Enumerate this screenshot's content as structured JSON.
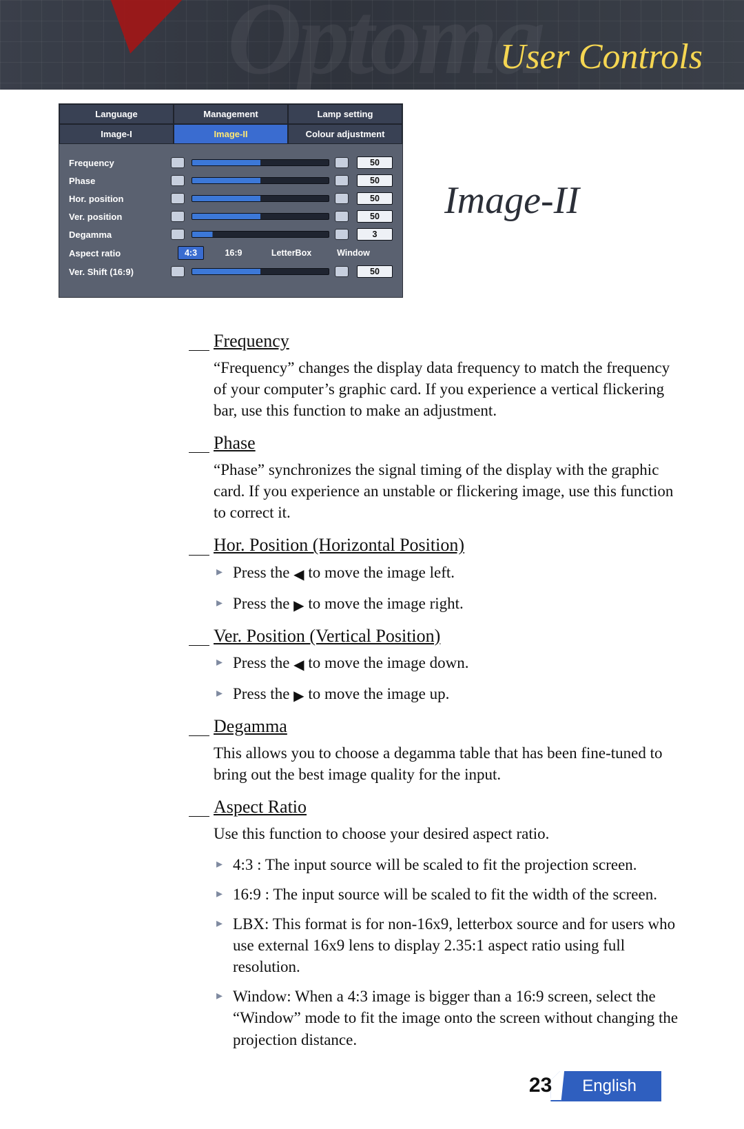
{
  "header": {
    "watermark": "Optoma",
    "title": "User Controls"
  },
  "section_title": "Image-II",
  "osd": {
    "tabs_top": [
      "Language",
      "Management",
      "Lamp setting"
    ],
    "tabs_bottom": [
      "Image-I",
      "Image-II",
      "Colour adjustment"
    ],
    "active_tab": "Image-II",
    "rows": [
      {
        "label": "Frequency",
        "value": "50"
      },
      {
        "label": "Phase",
        "value": "50"
      },
      {
        "label": "Hor. position",
        "value": "50"
      },
      {
        "label": "Ver. position",
        "value": "50"
      },
      {
        "label": "Degamma",
        "value": "3"
      }
    ],
    "aspect": {
      "label": "Aspect ratio",
      "options": [
        "4:3",
        "16:9",
        "LetterBox",
        "Window"
      ],
      "selected": "4:3"
    },
    "vshift": {
      "label": "Ver. Shift (16:9)",
      "value": "50"
    }
  },
  "sections": {
    "frequency": {
      "title": "Frequency",
      "text": "“Frequency” changes the display data frequency to match the frequency of your computer’s graphic card. If you experience a vertical flickering bar, use this function to make an adjustment."
    },
    "phase": {
      "title": "Phase",
      "text": "“Phase” synchronizes the signal timing of the display with the graphic card. If you experience an unstable or flickering image, use this function to correct it."
    },
    "hor": {
      "title": "Hor. Position (Horizontal Position)",
      "b1a": "Press the ",
      "b1b": " to move the image left.",
      "b2a": "Press the ",
      "b2b": " to move the image right."
    },
    "ver": {
      "title": "Ver. Position (Vertical Position)",
      "b1a": "Press the ",
      "b1b": " to move the image down.",
      "b2a": "Press the ",
      "b2b": " to move the image up."
    },
    "degamma": {
      "title": "Degamma",
      "text": "This allows you to choose a degamma table that has been fine-tuned to bring out the best image quality for the input."
    },
    "aspect": {
      "title": "Aspect Ratio",
      "intro": "Use this function to choose your desired aspect ratio.",
      "items": [
        "4:3 : The input source will be scaled to fit the projection screen.",
        "16:9 : The input source will be scaled to fit the width of the screen.",
        "LBX: This format is for non-16x9, letterbox source and for users who use external 16x9 lens to display 2.35:1 aspect ratio using full resolution.",
        "Window: When a 4:3 image is bigger than a 16:9 screen, select the “Window” mode to fit the image onto the screen without changing the projection distance."
      ]
    }
  },
  "footer": {
    "page": "23",
    "language": "English"
  }
}
